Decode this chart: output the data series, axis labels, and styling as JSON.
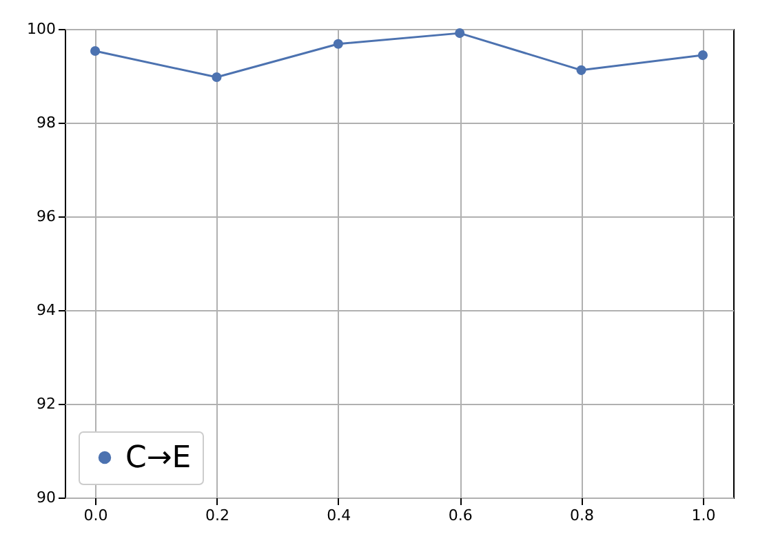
{
  "chart_data": {
    "type": "line",
    "x": [
      0.0,
      0.2,
      0.4,
      0.6,
      0.8,
      1.0
    ],
    "series": [
      {
        "name": "C→E",
        "color": "#4c72b0",
        "values": [
          99.53,
          98.97,
          99.68,
          99.91,
          99.12,
          99.44
        ]
      }
    ],
    "xlim": [
      -0.05,
      1.05
    ],
    "xticks": [
      {
        "value": 0,
        "label": "0.0"
      },
      {
        "value": 0.2,
        "label": "0.2"
      },
      {
        "value": 0.4,
        "label": "0.4"
      },
      {
        "value": 0.6,
        "label": "0.6"
      },
      {
        "value": 0.8,
        "label": "0.8"
      },
      {
        "value": 1,
        "label": "1.0"
      }
    ],
    "ylim": [
      90,
      100
    ],
    "yticks": [
      90,
      92,
      94,
      96,
      98,
      100
    ],
    "grid": true,
    "legend": "bottom left",
    "marker": "circle",
    "line_style": "solid"
  }
}
